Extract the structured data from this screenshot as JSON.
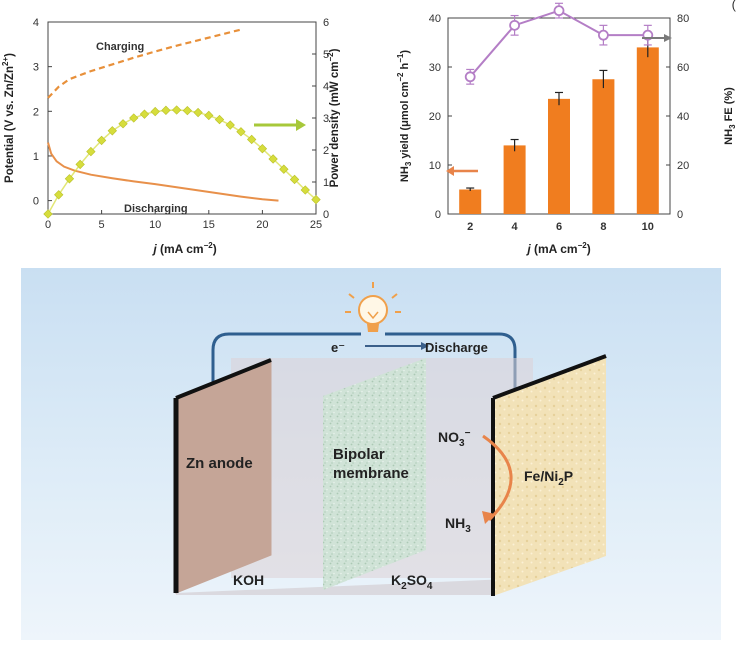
{
  "top_right_fragment": "(",
  "chart_data": [
    {
      "type": "line",
      "xlabel_italic": "j",
      "xlabel_rest": " (mA cm",
      "xlabel_sup": "−2",
      "xlabel_close": ")",
      "ylabel_left_main": "Potential (V vs. Zn/Zn",
      "ylabel_left_sup": "2+",
      "ylabel_left_close": ")",
      "ylabel_right_main": "Power density (mW cm",
      "ylabel_right_sup": "−2",
      "ylabel_right_close": ")",
      "xlim": [
        0,
        25
      ],
      "ylim_left": [
        -0.3,
        4
      ],
      "ylim_right": [
        0,
        6
      ],
      "xticks": [
        "0",
        "5",
        "10",
        "15",
        "20",
        "25"
      ],
      "yticks_left": [
        "0",
        "1",
        "2",
        "3",
        "4"
      ],
      "yticks_right": [
        "0",
        "1",
        "2",
        "3",
        "4",
        "5",
        "6"
      ],
      "annotations": [
        "Charging",
        "Discharging"
      ],
      "colors": {
        "charging": "#e8903a",
        "discharging": "#e8904a",
        "power": "#d6dd3c",
        "arrow": "#a7c83a"
      },
      "series": [
        {
          "name": "Charging",
          "axis": "left",
          "style": "dashed",
          "x": [
            0,
            1,
            2,
            4,
            6,
            8,
            10,
            12,
            14,
            16,
            18
          ],
          "y": [
            2.3,
            2.55,
            2.72,
            2.9,
            3.05,
            3.2,
            3.34,
            3.47,
            3.59,
            3.71,
            3.83
          ]
        },
        {
          "name": "Discharging",
          "axis": "left",
          "style": "solid",
          "x": [
            0,
            0.3,
            0.8,
            1.5,
            2.5,
            4,
            6,
            8,
            10,
            12,
            14,
            16,
            18,
            20,
            21.5
          ],
          "y": [
            1.3,
            1.05,
            0.88,
            0.76,
            0.67,
            0.58,
            0.5,
            0.43,
            0.37,
            0.3,
            0.23,
            0.16,
            0.09,
            0.03,
            0.0
          ]
        },
        {
          "name": "Power density",
          "axis": "right",
          "style": "markers",
          "x": [
            0,
            1,
            2,
            3,
            4,
            5,
            6,
            7,
            8,
            9,
            10,
            11,
            12,
            13,
            14,
            15,
            16,
            17,
            18,
            19,
            20,
            21,
            22,
            23,
            24,
            25
          ],
          "y": [
            0.0,
            0.6,
            1.1,
            1.55,
            1.95,
            2.3,
            2.6,
            2.82,
            3.0,
            3.12,
            3.2,
            3.24,
            3.25,
            3.23,
            3.17,
            3.08,
            2.95,
            2.78,
            2.57,
            2.33,
            2.04,
            1.72,
            1.4,
            1.08,
            0.75,
            0.45
          ]
        }
      ]
    },
    {
      "type": "bar",
      "xlabel_italic": "j",
      "xlabel_rest": " (mA cm",
      "xlabel_sup": "−2",
      "xlabel_close": ")",
      "ylabel_left_pre": "NH",
      "ylabel_left_sub": "3",
      "ylabel_left_mid": " yield (μmol cm",
      "ylabel_left_sup": "−2",
      "ylabel_left_mid2": " h",
      "ylabel_left_sup2": "−1",
      "ylabel_left_close": ")",
      "ylabel_right_pre": "NH",
      "ylabel_right_sub": "3",
      "ylabel_right_rest": " FE (%)",
      "categories": [
        "2",
        "4",
        "6",
        "8",
        "10"
      ],
      "ylim_left": [
        0,
        40
      ],
      "ylim_right": [
        0,
        80
      ],
      "yticks_left": [
        "0",
        "10",
        "20",
        "30",
        "40"
      ],
      "yticks_right": [
        "0",
        "20",
        "40",
        "60",
        "80"
      ],
      "colors": {
        "bar": "#f07d1f",
        "fe": "#b47ec6",
        "arrow_left": "#e8844a",
        "arrow_right": "#7a7a7a"
      },
      "series": [
        {
          "name": "NH3 yield",
          "axis": "left",
          "values": [
            5,
            14,
            23.5,
            27.5,
            34
          ],
          "errors": [
            0.3,
            1.2,
            1.3,
            1.8,
            2.0
          ]
        },
        {
          "name": "NH3 FE",
          "axis": "right",
          "values": [
            56,
            77,
            83,
            73,
            73
          ],
          "errors": [
            3,
            4,
            3,
            4,
            4
          ]
        }
      ]
    }
  ],
  "schematic": {
    "electron": "e⁻",
    "discharge": "Discharge",
    "zn_anode": "Zn anode",
    "bipolar_1": "Bipolar",
    "bipolar_2": "membrane",
    "no3_pre": "NO",
    "no3_sub": "3",
    "no3_sup": "−",
    "nh3_pre": "NH",
    "nh3_sub": "3",
    "cathode_pre": "Fe/Ni",
    "cathode_sub": "2",
    "cathode_post": "P",
    "koh": "KOH",
    "k2so4_pre": "K",
    "k2so4_sub": "2",
    "k2so4_mid": "SO",
    "k2so4_sub2": "4"
  }
}
